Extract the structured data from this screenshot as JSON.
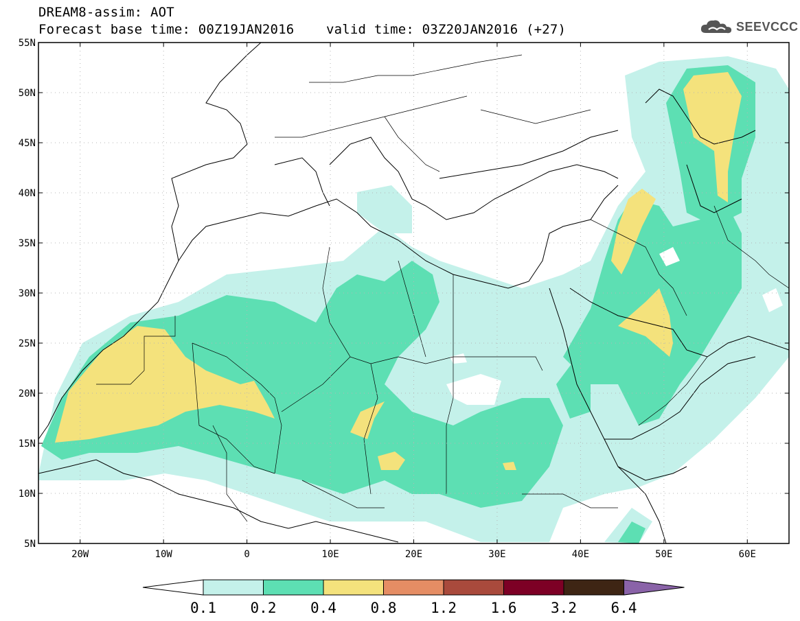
{
  "header": {
    "title": "DREAM8-assim: AOT",
    "subtitle": "Forecast base time: 00Z19JAN2016    valid time: 03Z20JAN2016 (+27)"
  },
  "logo": {
    "text": "SEEVCCC",
    "icon": "cloud-icon"
  },
  "map": {
    "variable": "AOT",
    "lon_range": [
      -25,
      65
    ],
    "lat_range": [
      5,
      55
    ],
    "lat_ticks": [
      {
        "value": 55,
        "label": "55N"
      },
      {
        "value": 50,
        "label": "50N"
      },
      {
        "value": 45,
        "label": "45N"
      },
      {
        "value": 40,
        "label": "40N"
      },
      {
        "value": 35,
        "label": "35N"
      },
      {
        "value": 30,
        "label": "30N"
      },
      {
        "value": 25,
        "label": "25N"
      },
      {
        "value": 20,
        "label": "20N"
      },
      {
        "value": 15,
        "label": "15N"
      },
      {
        "value": 10,
        "label": "10N"
      },
      {
        "value": 5,
        "label": "5N"
      }
    ],
    "lon_ticks": [
      {
        "value": -20,
        "label": "20W"
      },
      {
        "value": -10,
        "label": "10W"
      },
      {
        "value": 0,
        "label": "0"
      },
      {
        "value": 10,
        "label": "10E"
      },
      {
        "value": 20,
        "label": "20E"
      },
      {
        "value": 30,
        "label": "30E"
      },
      {
        "value": 40,
        "label": "40E"
      },
      {
        "value": 50,
        "label": "50E"
      },
      {
        "value": 60,
        "label": "60E"
      }
    ],
    "grid": true
  },
  "colorbar": {
    "levels": [
      "0.1",
      "0.2",
      "0.4",
      "0.8",
      "1.2",
      "1.6",
      "3.2",
      "6.4"
    ],
    "colors": [
      "#ffffff",
      "#c4f1ea",
      "#5ddfb3",
      "#f4e27c",
      "#e58d64",
      "#a94a3c",
      "#7d0025",
      "#3e2514",
      "#8a63a8"
    ]
  }
}
